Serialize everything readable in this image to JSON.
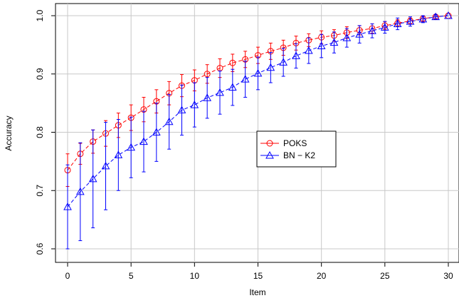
{
  "chart_data": {
    "type": "line",
    "xlabel": "Item",
    "ylabel": "Accuracy",
    "xlim": [
      0,
      30
    ],
    "ylim": [
      0.6,
      1.0
    ],
    "x_ticks": [
      0,
      5,
      10,
      15,
      20,
      25,
      30
    ],
    "y_ticks": [
      0.6,
      0.7,
      0.8,
      0.9,
      1.0
    ],
    "x_tick_labels": [
      "0",
      "5",
      "10",
      "15",
      "20",
      "25",
      "30"
    ],
    "y_tick_labels": [
      "0.6",
      "0.7",
      "0.8",
      "0.9",
      "1.0"
    ],
    "grid": true,
    "legend_position": "center-right",
    "x": [
      0,
      1,
      2,
      3,
      4,
      5,
      6,
      7,
      8,
      9,
      10,
      11,
      12,
      13,
      14,
      15,
      16,
      17,
      18,
      19,
      20,
      21,
      22,
      23,
      24,
      25,
      26,
      27,
      28,
      29,
      30
    ],
    "series": [
      {
        "name": "POKS",
        "color": "#ff0000",
        "marker": "circle",
        "line_style": "dashed",
        "values": [
          0.735,
          0.763,
          0.784,
          0.798,
          0.812,
          0.825,
          0.839,
          0.853,
          0.867,
          0.88,
          0.889,
          0.9,
          0.91,
          0.919,
          0.925,
          0.932,
          0.939,
          0.945,
          0.953,
          0.958,
          0.963,
          0.966,
          0.971,
          0.975,
          0.978,
          0.983,
          0.987,
          0.991,
          0.995,
          0.998,
          1.0
        ],
        "err": [
          0.028,
          0.018,
          0.02,
          0.022,
          0.021,
          0.022,
          0.021,
          0.02,
          0.02,
          0.019,
          0.018,
          0.016,
          0.016,
          0.015,
          0.014,
          0.014,
          0.014,
          0.013,
          0.012,
          0.011,
          0.011,
          0.01,
          0.01,
          0.008,
          0.008,
          0.007,
          0.006,
          0.005,
          0.004,
          0.003,
          0.001
        ]
      },
      {
        "name": "BN − K2",
        "color": "#0000ff",
        "marker": "triangle",
        "line_style": "dashed",
        "values": [
          0.672,
          0.698,
          0.72,
          0.742,
          0.761,
          0.774,
          0.784,
          0.8,
          0.818,
          0.838,
          0.847,
          0.859,
          0.868,
          0.877,
          0.891,
          0.901,
          0.911,
          0.92,
          0.931,
          0.94,
          0.948,
          0.954,
          0.962,
          0.968,
          0.974,
          0.98,
          0.986,
          0.99,
          0.994,
          0.998,
          1.0
        ],
        "err": [
          0.072,
          0.084,
          0.084,
          0.075,
          0.061,
          0.052,
          0.052,
          0.05,
          0.047,
          0.043,
          0.038,
          0.035,
          0.037,
          0.031,
          0.031,
          0.028,
          0.026,
          0.024,
          0.021,
          0.022,
          0.02,
          0.018,
          0.016,
          0.015,
          0.012,
          0.01,
          0.01,
          0.008,
          0.006,
          0.004,
          0.001
        ]
      }
    ]
  }
}
